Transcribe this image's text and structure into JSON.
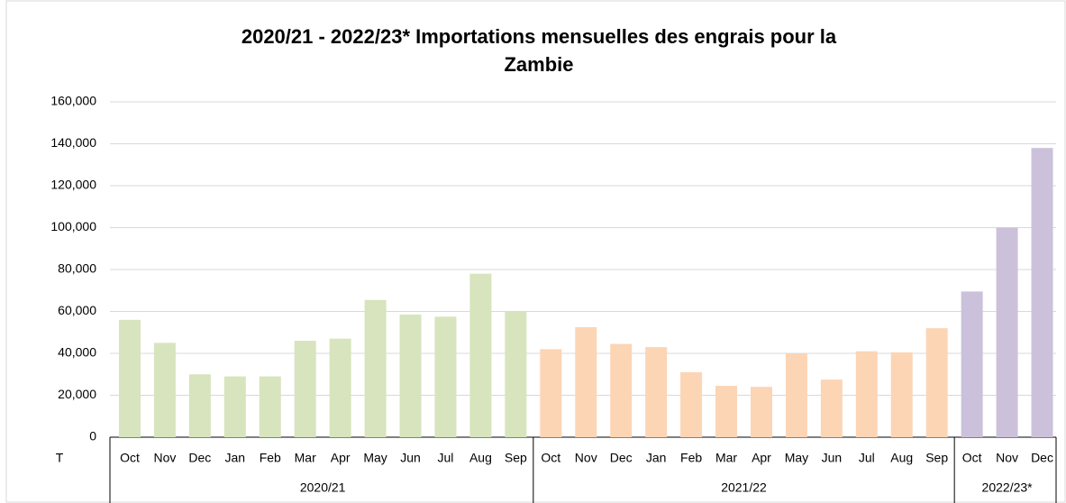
{
  "chart_data": {
    "type": "bar",
    "title": [
      "2020/21 - 2022/23* Importations mensuelles des engrais pour la",
      "Zambie"
    ],
    "y_label": "T",
    "ylim": [
      0,
      160000
    ],
    "yticks": [
      0,
      {
        "value": 20000,
        "label": "20,000"
      },
      {
        "value": 40000,
        "label": "40,000"
      },
      {
        "value": 60000,
        "label": "60,000"
      },
      {
        "value": 80000,
        "label": "80,000"
      },
      {
        "value": 100000,
        "label": "100,000"
      },
      {
        "value": 120000,
        "label": "120,000"
      },
      {
        "value": 140000,
        "label": "140,000"
      },
      {
        "value": 160000,
        "label": "160,000"
      }
    ],
    "grid": true,
    "groups": [
      {
        "name": "2020/21",
        "color": "#d7e4bd",
        "categories": [
          "Oct",
          "Nov",
          "Dec",
          "Jan",
          "Feb",
          "Mar",
          "Apr",
          "May",
          "Jun",
          "Jul",
          "Aug",
          "Sep"
        ],
        "values": [
          56000,
          45000,
          30000,
          29000,
          29000,
          46000,
          47000,
          65500,
          58500,
          57500,
          78000,
          60000
        ]
      },
      {
        "name": "2021/22",
        "color": "#fcd5b5",
        "categories": [
          "Oct",
          "Nov",
          "Dec",
          "Jan",
          "Feb",
          "Mar",
          "Apr",
          "May",
          "Jun",
          "Jul",
          "Aug",
          "Sep"
        ],
        "values": [
          42000,
          52500,
          44500,
          43000,
          31000,
          24500,
          24000,
          40000,
          27500,
          41000,
          40500,
          52000
        ]
      },
      {
        "name": "2022/23*",
        "color": "#ccc1da",
        "categories": [
          "Oct",
          "Nov",
          "Dec"
        ],
        "values": [
          69500,
          100000,
          138000
        ]
      }
    ]
  }
}
